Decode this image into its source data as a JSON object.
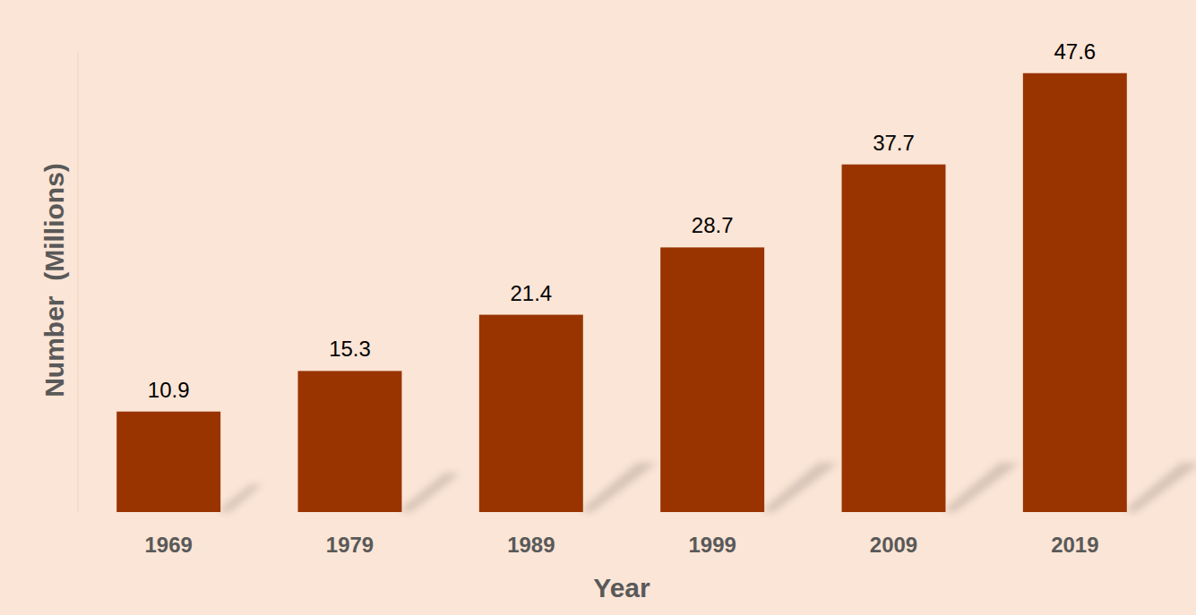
{
  "chart_data": {
    "type": "bar",
    "categories": [
      "1969",
      "1979",
      "1989",
      "1999",
      "2009",
      "2019"
    ],
    "values": [
      10.9,
      15.3,
      21.4,
      28.7,
      37.7,
      47.6
    ],
    "color": "#993300",
    "xlabel": "Year",
    "ylabel": "Number  (Millions)",
    "ylim": [
      0,
      50
    ],
    "grid": false,
    "data_labels": true,
    "tick_labels": "x"
  }
}
